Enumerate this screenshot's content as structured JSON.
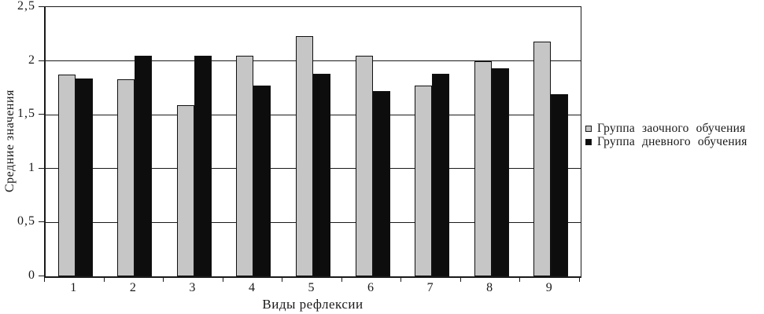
{
  "chart_data": {
    "type": "bar",
    "title": "",
    "xlabel": "Виды рефлексии",
    "ylabel": "Средние значения",
    "categories": [
      "1",
      "2",
      "3",
      "4",
      "5",
      "6",
      "7",
      "8",
      "9"
    ],
    "series": [
      {
        "name": "Группа заочного обучения",
        "color": "#c6c6c6",
        "border": "#111111",
        "values": [
          1.87,
          1.83,
          1.59,
          2.05,
          2.23,
          2.05,
          1.77,
          2.0,
          2.18
        ]
      },
      {
        "name": "Группа дневного обучения",
        "color": "#0d0d0d",
        "border": "#111111",
        "values": [
          1.84,
          2.05,
          2.05,
          1.77,
          1.88,
          1.72,
          1.88,
          1.93,
          1.69
        ]
      }
    ],
    "ylim": [
      0,
      2.5
    ],
    "yticks": [
      {
        "value": 0,
        "label": "0"
      },
      {
        "value": 0.5,
        "label": "0,5"
      },
      {
        "value": 1,
        "label": "1"
      },
      {
        "value": 1.5,
        "label": "1,5"
      },
      {
        "value": 2,
        "label": "2"
      },
      {
        "value": 2.5,
        "label": "2,5"
      }
    ],
    "grid": true,
    "legend_position": "right",
    "colors": {
      "grid": "#1a1a1a",
      "axis": "#1a1a1a",
      "background": "#ffffff"
    }
  }
}
